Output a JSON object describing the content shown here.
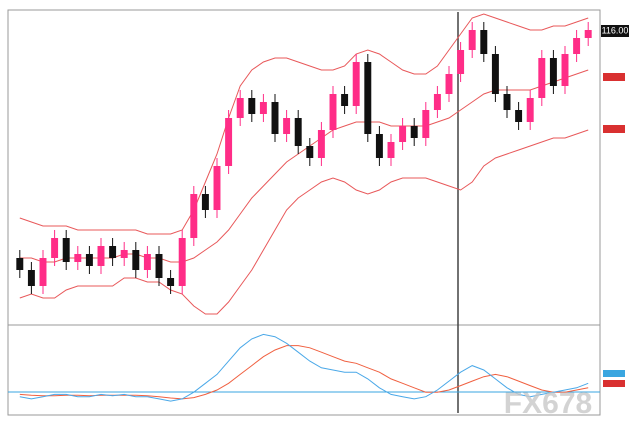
{
  "chart_data": {
    "type": "candlestick",
    "watermark": "FX678",
    "price_label": "116.00",
    "bull_color": "#ff2d87",
    "bear_color": "#111111",
    "band_color": "#e8585a",
    "ylim": [
      108.7,
      116.4
    ],
    "open": [
      110.3,
      110.0,
      109.6,
      110.3,
      110.8,
      110.2,
      110.4,
      110.1,
      110.6,
      110.3,
      110.5,
      110.0,
      110.4,
      109.8,
      109.6,
      110.8,
      111.9,
      111.5,
      112.6,
      113.8,
      114.3,
      113.9,
      114.2,
      113.4,
      113.8,
      113.1,
      112.8,
      113.5,
      114.4,
      114.1,
      115.2,
      113.4,
      112.8,
      113.2,
      113.6,
      113.3,
      114.0,
      114.4,
      114.9,
      115.5,
      116.0,
      115.4,
      114.4,
      114.0,
      113.7,
      114.3,
      115.3,
      114.6,
      115.4,
      115.8
    ],
    "high": [
      110.5,
      110.2,
      110.5,
      111.0,
      111.0,
      110.6,
      110.6,
      110.8,
      110.8,
      110.7,
      110.7,
      110.6,
      110.6,
      110.0,
      111.0,
      112.1,
      112.1,
      112.8,
      114.0,
      114.5,
      114.5,
      114.4,
      114.4,
      114.0,
      114.0,
      113.3,
      113.7,
      114.6,
      114.6,
      115.4,
      115.4,
      113.6,
      113.4,
      113.8,
      113.8,
      114.2,
      114.6,
      115.1,
      115.7,
      116.2,
      116.2,
      115.6,
      114.6,
      114.2,
      114.5,
      115.5,
      115.5,
      115.6,
      116.0,
      116.2
    ],
    "low": [
      109.8,
      109.4,
      109.4,
      110.1,
      110.0,
      110.0,
      109.9,
      109.9,
      110.1,
      110.1,
      109.8,
      109.8,
      109.6,
      109.4,
      109.4,
      110.6,
      111.3,
      111.3,
      112.4,
      113.6,
      113.7,
      113.7,
      113.2,
      113.2,
      112.9,
      112.6,
      112.6,
      113.3,
      113.9,
      113.9,
      113.2,
      112.6,
      112.6,
      113.0,
      113.1,
      113.1,
      113.8,
      114.2,
      114.7,
      115.3,
      115.2,
      114.2,
      113.8,
      113.5,
      113.5,
      114.1,
      114.4,
      114.4,
      115.2,
      115.6
    ],
    "close": [
      110.0,
      109.6,
      110.3,
      110.8,
      110.2,
      110.4,
      110.1,
      110.6,
      110.3,
      110.5,
      110.0,
      110.4,
      109.8,
      109.6,
      110.8,
      111.9,
      111.5,
      112.6,
      113.8,
      114.3,
      113.9,
      114.2,
      113.4,
      113.8,
      113.1,
      112.8,
      113.5,
      114.4,
      114.1,
      115.2,
      113.4,
      112.8,
      113.2,
      113.6,
      113.3,
      114.0,
      114.4,
      114.9,
      115.5,
      116.0,
      115.4,
      114.4,
      114.0,
      113.7,
      114.3,
      115.3,
      114.6,
      115.4,
      115.8,
      116.0
    ],
    "bands": {
      "upper": [
        111.3,
        111.2,
        111.1,
        111.1,
        111.1,
        111.0,
        111.0,
        111.0,
        111.0,
        111.0,
        111.0,
        110.9,
        110.9,
        110.9,
        111.0,
        111.5,
        112.2,
        112.9,
        113.8,
        114.6,
        115.0,
        115.2,
        115.3,
        115.3,
        115.2,
        115.1,
        115.0,
        115.0,
        115.1,
        115.4,
        115.5,
        115.4,
        115.2,
        115.0,
        114.9,
        114.9,
        115.1,
        115.5,
        115.9,
        116.3,
        116.4,
        116.3,
        116.2,
        116.1,
        116.0,
        116.0,
        116.1,
        116.1,
        116.2,
        116.3
      ],
      "middle": [
        110.3,
        110.3,
        110.2,
        110.2,
        110.3,
        110.3,
        110.3,
        110.3,
        110.3,
        110.4,
        110.4,
        110.3,
        110.3,
        110.2,
        110.2,
        110.3,
        110.5,
        110.7,
        111.0,
        111.4,
        111.8,
        112.1,
        112.4,
        112.7,
        112.9,
        113.1,
        113.3,
        113.5,
        113.6,
        113.7,
        113.7,
        113.7,
        113.6,
        113.6,
        113.6,
        113.6,
        113.7,
        113.8,
        114.0,
        114.2,
        114.4,
        114.5,
        114.5,
        114.5,
        114.5,
        114.6,
        114.7,
        114.8,
        114.9,
        115.0
      ],
      "lower": [
        109.3,
        109.4,
        109.3,
        109.3,
        109.5,
        109.6,
        109.6,
        109.6,
        109.6,
        109.8,
        109.8,
        109.7,
        109.7,
        109.5,
        109.4,
        109.1,
        108.9,
        108.9,
        109.2,
        109.6,
        110.0,
        110.5,
        111.0,
        111.5,
        111.8,
        112.0,
        112.2,
        112.3,
        112.2,
        112.0,
        111.9,
        112.0,
        112.2,
        112.3,
        112.3,
        112.3,
        112.2,
        112.1,
        112.0,
        112.2,
        112.6,
        112.8,
        112.9,
        113.0,
        113.1,
        113.2,
        113.3,
        113.3,
        113.4,
        113.5
      ]
    },
    "macd": {
      "ylim": [
        -0.3,
        1.5
      ],
      "main_color": "#4aa8e8",
      "signal_color": "#f06040",
      "main": [
        0.0,
        -0.05,
        0.0,
        0.05,
        0.05,
        0.0,
        0.0,
        0.05,
        0.02,
        0.05,
        0.0,
        0.0,
        -0.05,
        -0.1,
        -0.05,
        0.1,
        0.3,
        0.5,
        0.8,
        1.1,
        1.3,
        1.4,
        1.35,
        1.2,
        1.0,
        0.8,
        0.65,
        0.6,
        0.55,
        0.55,
        0.4,
        0.2,
        0.05,
        0.0,
        -0.05,
        0.0,
        0.15,
        0.35,
        0.55,
        0.7,
        0.6,
        0.4,
        0.2,
        0.05,
        0.0,
        0.05,
        0.1,
        0.15,
        0.2,
        0.3
      ],
      "signal": [
        0.05,
        0.03,
        0.02,
        0.02,
        0.03,
        0.03,
        0.02,
        0.03,
        0.03,
        0.03,
        0.03,
        0.02,
        0.0,
        -0.03,
        -0.05,
        -0.02,
        0.05,
        0.15,
        0.3,
        0.5,
        0.7,
        0.9,
        1.05,
        1.15,
        1.15,
        1.1,
        1.0,
        0.9,
        0.8,
        0.75,
        0.65,
        0.55,
        0.4,
        0.3,
        0.2,
        0.1,
        0.1,
        0.15,
        0.25,
        0.35,
        0.45,
        0.5,
        0.45,
        0.35,
        0.25,
        0.15,
        0.1,
        0.1,
        0.15,
        0.2
      ]
    }
  }
}
